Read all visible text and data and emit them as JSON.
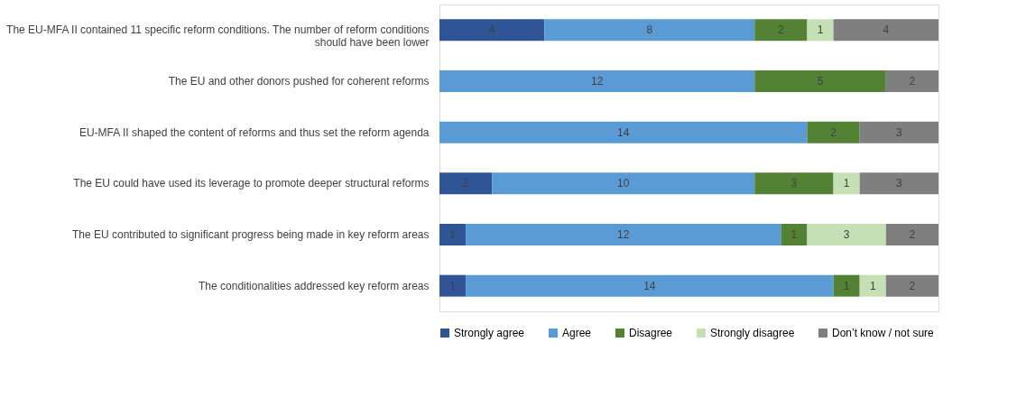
{
  "chart_data": {
    "type": "bar",
    "orientation": "horizontal",
    "stacked": true,
    "data_labels": true,
    "legend": "bottom",
    "categories": [
      "The EU-MFA II contained 11 specific reform conditions. The number of reform conditions should have been lower",
      "The EU and other donors pushed for coherent reforms",
      "EU-MFA II shaped the content of reforms and thus set the reform agenda",
      "The EU could have used its leverage to promote deeper structural reforms",
      "The EU contributed to significant progress being made in key reform areas",
      "The conditionalities addressed key reform areas"
    ],
    "series": [
      {
        "name": "Strongly agree",
        "color": "#2f5597",
        "values": [
          4,
          null,
          null,
          2,
          1,
          1
        ]
      },
      {
        "name": "Agree",
        "color": "#5b9bd5",
        "values": [
          8,
          12,
          14,
          10,
          12,
          14
        ]
      },
      {
        "name": "Disagree",
        "color": "#548235",
        "values": [
          2,
          5,
          2,
          3,
          1,
          1
        ]
      },
      {
        "name": "Strongly disagree",
        "color": "#c5e0b4",
        "values": [
          1,
          null,
          null,
          1,
          3,
          1
        ]
      },
      {
        "name": "Don’t know / not sure",
        "color": "#7f7f7f",
        "values": [
          4,
          2,
          3,
          3,
          2,
          2
        ]
      }
    ]
  }
}
